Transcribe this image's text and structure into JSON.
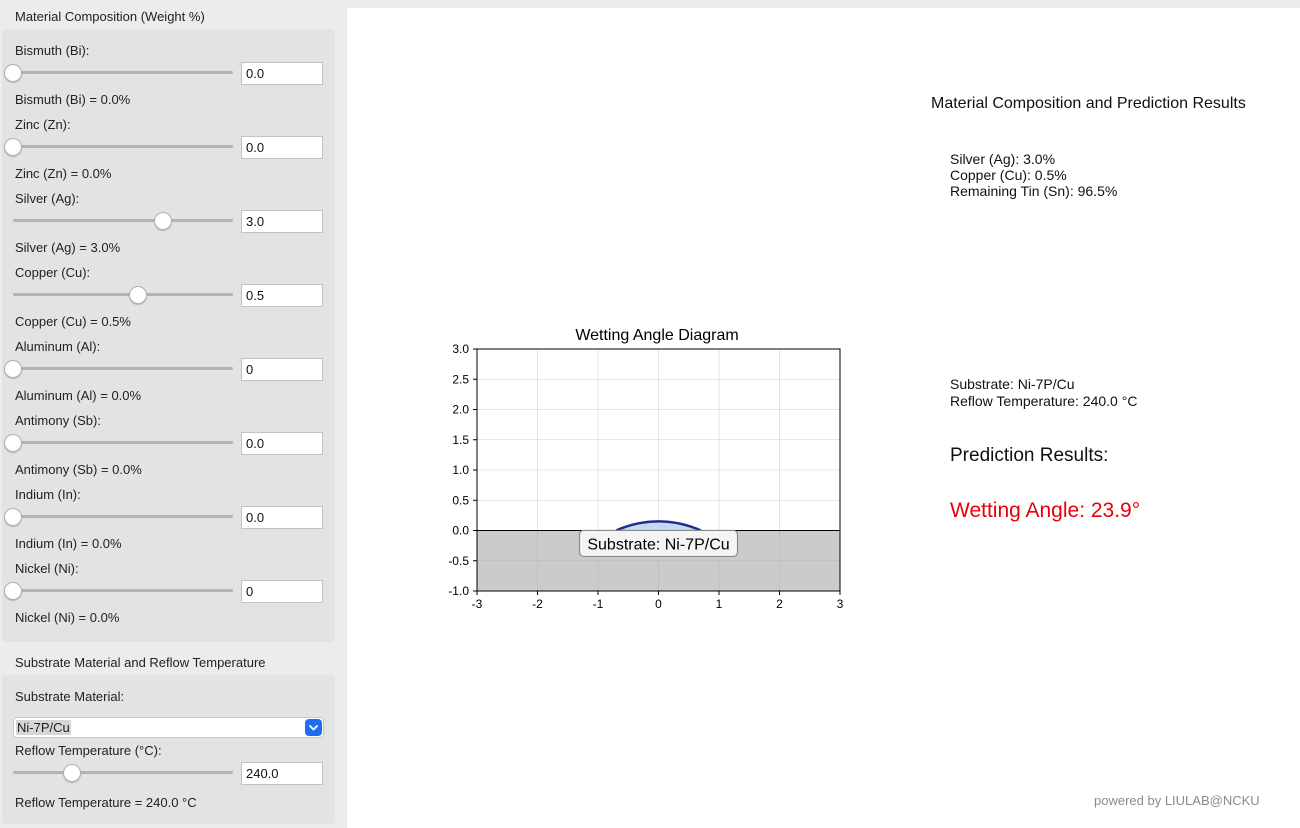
{
  "composition": {
    "title": "Material Composition (Weight %)",
    "elements": [
      {
        "label": "Bismuth (Bi):",
        "value": "0.0",
        "readout": "Bismuth (Bi) = 0.0%",
        "fraction": 0.0
      },
      {
        "label": "Zinc (Zn):",
        "value": "0.0",
        "readout": "Zinc (Zn) = 0.0%",
        "fraction": 0.0
      },
      {
        "label": "Silver (Ag):",
        "value": "3.0",
        "readout": "Silver (Ag) = 3.0%",
        "fraction": 0.68
      },
      {
        "label": "Copper (Cu):",
        "value": "0.5",
        "readout": "Copper (Cu) = 0.5%",
        "fraction": 0.57
      },
      {
        "label": "Aluminum (Al):",
        "value": "0",
        "readout": "Aluminum (Al) = 0.0%",
        "fraction": 0.0
      },
      {
        "label": "Antimony (Sb):",
        "value": "0.0",
        "readout": "Antimony (Sb) = 0.0%",
        "fraction": 0.0
      },
      {
        "label": "Indium (In):",
        "value": "0.0",
        "readout": "Indium (In) = 0.0%",
        "fraction": 0.0
      },
      {
        "label": "Nickel (Ni):",
        "value": "0",
        "readout": "Nickel (Ni) = 0.0%",
        "fraction": 0.0
      }
    ]
  },
  "substrate": {
    "title": "Substrate Material and Reflow Temperature",
    "material_label": "Substrate Material:",
    "material_value": "Ni-7P/Cu",
    "temp_label": "Reflow Temperature (°C):",
    "temp_value": "240.0",
    "temp_fraction": 0.27,
    "temp_readout": "Reflow Temperature = 240.0 °C"
  },
  "results": {
    "title": "Material Composition and Prediction Results",
    "comp_lines": [
      "Silver (Ag): 3.0%",
      "Copper (Cu): 0.5%",
      "Remaining Tin (Sn): 96.5%"
    ],
    "substrate_line": "Substrate: Ni-7P/Cu",
    "temp_line": "Reflow Temperature: 240.0 °C",
    "prediction_heading": "Prediction Results:",
    "wetting_angle": "Wetting Angle: 23.9°",
    "wetting_color": "#e8000b"
  },
  "chart_data": {
    "type": "area",
    "title": "Wetting Angle Diagram",
    "xlim": [
      -3,
      3
    ],
    "ylim": [
      -1,
      3
    ],
    "xticks": [
      -3,
      -2,
      -1,
      0,
      1,
      2,
      3
    ],
    "yticks": [
      -1.0,
      -0.5,
      0.0,
      0.5,
      1.0,
      1.5,
      2.0,
      2.5,
      3.0
    ],
    "grid": true,
    "substrate_region": {
      "y_from": -1.0,
      "y_to": 0.0,
      "color": "#cbcbcb"
    },
    "droplet": {
      "base_half_width": 0.7,
      "height": 0.15,
      "fill": "#c6d9f0",
      "edge": "#1f2f8f"
    },
    "annotation": "Substrate: Ni-7P/Cu"
  },
  "footer": "powered by LIULAB@NCKU"
}
